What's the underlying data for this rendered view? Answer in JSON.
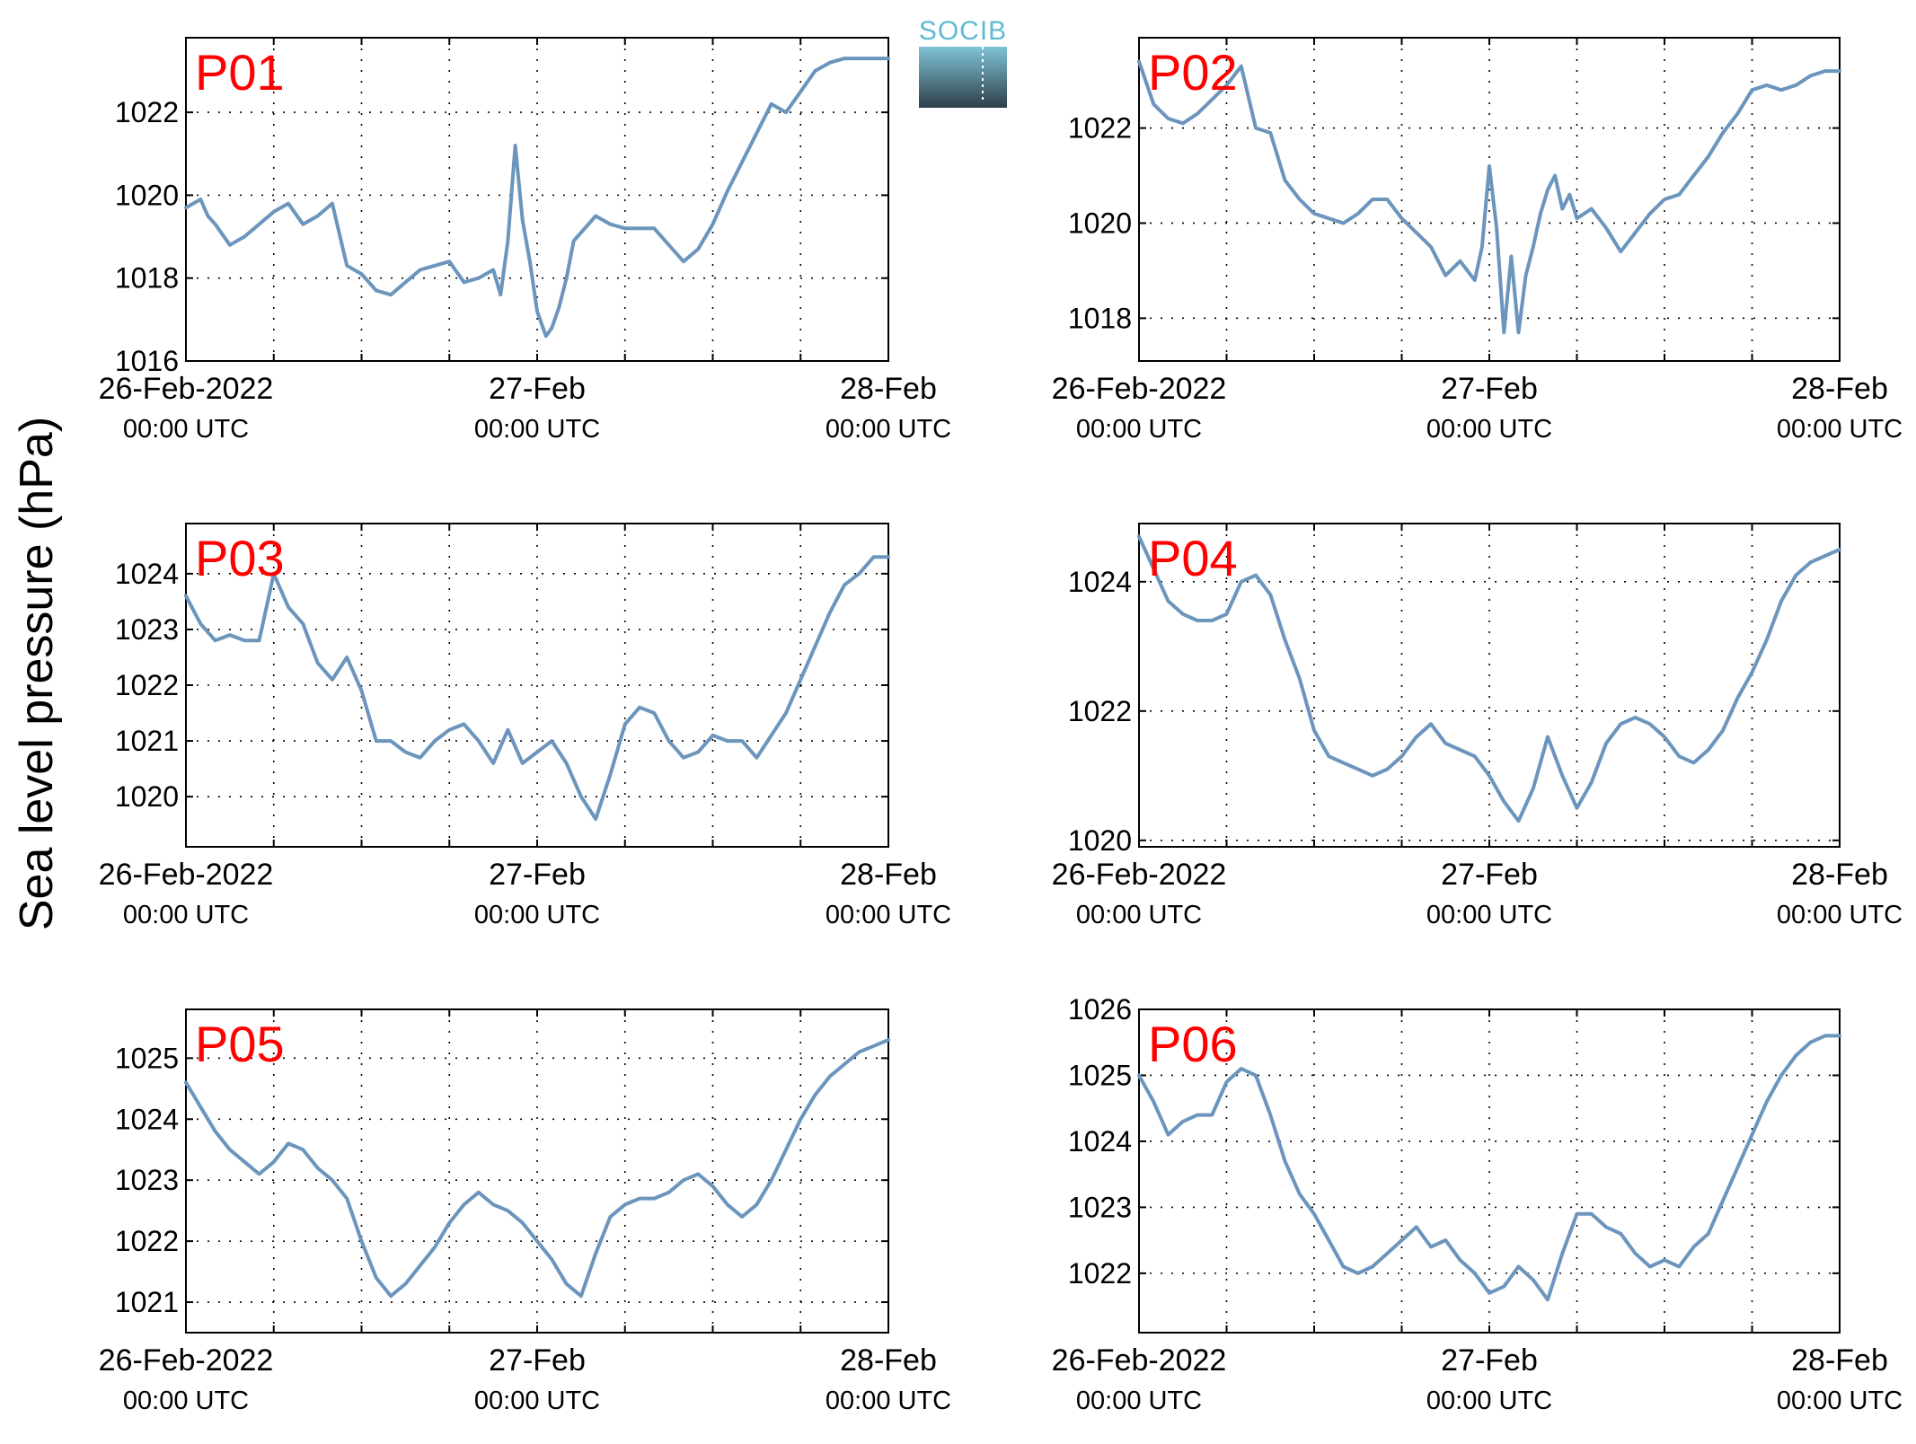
{
  "ylabel": "Sea level pressure (hPa)",
  "logo": {
    "text": "SOCIB",
    "text_color": "#5fb9d2",
    "gradient_top": "#7fc3d6",
    "gradient_bottom": "#2f3f48"
  },
  "colors": {
    "line": "#6b95bc",
    "panel_label": "#ff0000",
    "grid": "#000000"
  },
  "chart_data": [
    {
      "type": "line",
      "title": "P01",
      "x_ticks": [
        {
          "x": 0,
          "date": "26-Feb-2022",
          "time": "00:00 UTC"
        },
        {
          "x": 24,
          "date": "27-Feb",
          "time": "00:00 UTC"
        },
        {
          "x": 48,
          "date": "28-Feb",
          "time": "00:00 UTC"
        }
      ],
      "xlim": [
        0,
        48
      ],
      "ylim": [
        1016,
        1023.8
      ],
      "y_ticks": [
        1016,
        1018,
        1020,
        1022
      ],
      "grid": true,
      "x": [
        0,
        1,
        1.5,
        2,
        3,
        4,
        5,
        6,
        7,
        8,
        9,
        10,
        11,
        12,
        13,
        14,
        15,
        16,
        17,
        18,
        19,
        20,
        21,
        21.5,
        22,
        22.5,
        23,
        23.5,
        24,
        24.3,
        24.6,
        25,
        25.5,
        26,
        26.5,
        27,
        28,
        29,
        30,
        31,
        32,
        33,
        34,
        35,
        36,
        37,
        38,
        39,
        40,
        41,
        42,
        43,
        44,
        45,
        46,
        47,
        48
      ],
      "values": [
        1019.7,
        1019.9,
        1019.5,
        1019.3,
        1018.8,
        1019.0,
        1019.3,
        1019.6,
        1019.8,
        1019.3,
        1019.5,
        1019.8,
        1018.3,
        1018.1,
        1017.7,
        1017.6,
        1017.9,
        1018.2,
        1018.3,
        1018.4,
        1017.9,
        1018.0,
        1018.2,
        1017.6,
        1018.9,
        1021.2,
        1019.4,
        1018.4,
        1017.2,
        1016.9,
        1016.6,
        1016.8,
        1017.3,
        1018.0,
        1018.9,
        1019.1,
        1019.5,
        1019.3,
        1019.2,
        1019.2,
        1019.2,
        1018.8,
        1018.4,
        1018.7,
        1019.3,
        1020.1,
        1020.8,
        1021.5,
        1022.2,
        1022.0,
        1022.5,
        1023.0,
        1023.2,
        1023.3,
        1023.3,
        1023.3,
        1023.3
      ]
    },
    {
      "type": "line",
      "title": "P02",
      "x_ticks": [
        {
          "x": 0,
          "date": "26-Feb-2022",
          "time": "00:00 UTC"
        },
        {
          "x": 24,
          "date": "27-Feb",
          "time": "00:00 UTC"
        },
        {
          "x": 48,
          "date": "28-Feb",
          "time": "00:00 UTC"
        }
      ],
      "xlim": [
        0,
        48
      ],
      "ylim": [
        1017.1,
        1023.9
      ],
      "y_ticks": [
        1018,
        1020,
        1022
      ],
      "grid": true,
      "x": [
        0,
        1,
        2,
        3,
        4,
        5,
        6,
        7,
        8,
        9,
        10,
        11,
        12,
        13,
        14,
        15,
        16,
        17,
        18,
        19,
        20,
        21,
        22,
        23,
        23.5,
        24,
        24.5,
        25,
        25.5,
        26,
        26.5,
        27,
        27.5,
        28,
        28.5,
        29,
        29.5,
        30,
        31,
        32,
        33,
        34,
        35,
        36,
        37,
        38,
        39,
        40,
        41,
        42,
        43,
        44,
        45,
        46,
        47,
        48
      ],
      "values": [
        1023.4,
        1022.5,
        1022.2,
        1022.1,
        1022.3,
        1022.6,
        1022.9,
        1023.3,
        1022.0,
        1021.9,
        1020.9,
        1020.5,
        1020.2,
        1020.1,
        1020.0,
        1020.2,
        1020.5,
        1020.5,
        1020.1,
        1019.8,
        1019.5,
        1018.9,
        1019.2,
        1018.8,
        1019.5,
        1021.2,
        1019.9,
        1017.7,
        1019.3,
        1017.7,
        1018.9,
        1019.5,
        1020.2,
        1020.7,
        1021.0,
        1020.3,
        1020.6,
        1020.1,
        1020.3,
        1019.9,
        1019.4,
        1019.8,
        1020.2,
        1020.5,
        1020.6,
        1021.0,
        1021.4,
        1021.9,
        1022.3,
        1022.8,
        1022.9,
        1022.8,
        1022.9,
        1023.1,
        1023.2,
        1023.2
      ]
    },
    {
      "type": "line",
      "title": "P03",
      "x_ticks": [
        {
          "x": 0,
          "date": "26-Feb-2022",
          "time": "00:00 UTC"
        },
        {
          "x": 24,
          "date": "27-Feb",
          "time": "00:00 UTC"
        },
        {
          "x": 48,
          "date": "28-Feb",
          "time": "00:00 UTC"
        }
      ],
      "xlim": [
        0,
        48
      ],
      "ylim": [
        1019.1,
        1024.9
      ],
      "y_ticks": [
        1020,
        1021,
        1022,
        1023,
        1024
      ],
      "grid": true,
      "x": [
        0,
        1,
        2,
        3,
        4,
        5,
        6,
        7,
        8,
        9,
        10,
        11,
        12,
        13,
        14,
        15,
        16,
        17,
        18,
        19,
        20,
        21,
        22,
        23,
        24,
        25,
        26,
        27,
        28,
        29,
        30,
        31,
        32,
        33,
        34,
        35,
        36,
        37,
        38,
        39,
        40,
        41,
        42,
        43,
        44,
        45,
        46,
        47,
        48
      ],
      "values": [
        1023.6,
        1023.1,
        1022.8,
        1022.9,
        1022.8,
        1022.8,
        1024.0,
        1023.4,
        1023.1,
        1022.4,
        1022.1,
        1022.5,
        1021.9,
        1021.0,
        1021.0,
        1020.8,
        1020.7,
        1021.0,
        1021.2,
        1021.3,
        1021.0,
        1020.6,
        1021.2,
        1020.6,
        1020.8,
        1021.0,
        1020.6,
        1020.0,
        1019.6,
        1020.4,
        1021.3,
        1021.6,
        1021.5,
        1021.0,
        1020.7,
        1020.8,
        1021.1,
        1021.0,
        1021.0,
        1020.7,
        1021.1,
        1021.5,
        1022.1,
        1022.7,
        1023.3,
        1023.8,
        1024.0,
        1024.3,
        1024.3
      ]
    },
    {
      "type": "line",
      "title": "P04",
      "x_ticks": [
        {
          "x": 0,
          "date": "26-Feb-2022",
          "time": "00:00 UTC"
        },
        {
          "x": 24,
          "date": "27-Feb",
          "time": "00:00 UTC"
        },
        {
          "x": 48,
          "date": "28-Feb",
          "time": "00:00 UTC"
        }
      ],
      "xlim": [
        0,
        48
      ],
      "ylim": [
        1019.9,
        1024.9
      ],
      "y_ticks": [
        1020,
        1022,
        1024
      ],
      "grid": true,
      "x": [
        0,
        1,
        2,
        3,
        4,
        5,
        6,
        7,
        8,
        9,
        10,
        11,
        12,
        13,
        14,
        15,
        16,
        17,
        18,
        19,
        20,
        21,
        22,
        23,
        24,
        25,
        26,
        27,
        28,
        29,
        30,
        31,
        32,
        33,
        34,
        35,
        36,
        37,
        38,
        39,
        40,
        41,
        42,
        43,
        44,
        45,
        46,
        47,
        48
      ],
      "values": [
        1024.7,
        1024.2,
        1023.7,
        1023.5,
        1023.4,
        1023.4,
        1023.5,
        1024.0,
        1024.1,
        1023.8,
        1023.1,
        1022.5,
        1021.7,
        1021.3,
        1021.2,
        1021.1,
        1021.0,
        1021.1,
        1021.3,
        1021.6,
        1021.8,
        1021.5,
        1021.4,
        1021.3,
        1021.0,
        1020.6,
        1020.3,
        1020.8,
        1021.6,
        1021.0,
        1020.5,
        1020.9,
        1021.5,
        1021.8,
        1021.9,
        1021.8,
        1021.6,
        1021.3,
        1021.2,
        1021.4,
        1021.7,
        1022.2,
        1022.6,
        1023.1,
        1023.7,
        1024.1,
        1024.3,
        1024.4,
        1024.5
      ]
    },
    {
      "type": "line",
      "title": "P05",
      "x_ticks": [
        {
          "x": 0,
          "date": "26-Feb-2022",
          "time": "00:00 UTC"
        },
        {
          "x": 24,
          "date": "27-Feb",
          "time": "00:00 UTC"
        },
        {
          "x": 48,
          "date": "28-Feb",
          "time": "00:00 UTC"
        }
      ],
      "xlim": [
        0,
        48
      ],
      "ylim": [
        1020.5,
        1025.8
      ],
      "y_ticks": [
        1021,
        1022,
        1023,
        1024,
        1025
      ],
      "grid": true,
      "x": [
        0,
        1,
        2,
        3,
        4,
        5,
        6,
        7,
        8,
        9,
        10,
        11,
        12,
        13,
        14,
        15,
        16,
        17,
        18,
        19,
        20,
        21,
        22,
        23,
        24,
        25,
        26,
        27,
        28,
        29,
        30,
        31,
        32,
        33,
        34,
        35,
        36,
        37,
        38,
        39,
        40,
        41,
        42,
        43,
        44,
        45,
        46,
        47,
        48
      ],
      "values": [
        1024.6,
        1024.2,
        1023.8,
        1023.5,
        1023.3,
        1023.1,
        1023.3,
        1023.6,
        1023.5,
        1023.2,
        1023.0,
        1022.7,
        1022.0,
        1021.4,
        1021.1,
        1021.3,
        1021.6,
        1021.9,
        1022.3,
        1022.6,
        1022.8,
        1022.6,
        1022.5,
        1022.3,
        1022.0,
        1021.7,
        1021.3,
        1021.1,
        1021.8,
        1022.4,
        1022.6,
        1022.7,
        1022.7,
        1022.8,
        1023.0,
        1023.1,
        1022.9,
        1022.6,
        1022.4,
        1022.6,
        1023.0,
        1023.5,
        1024.0,
        1024.4,
        1024.7,
        1024.9,
        1025.1,
        1025.2,
        1025.3
      ]
    },
    {
      "type": "line",
      "title": "P06",
      "x_ticks": [
        {
          "x": 0,
          "date": "26-Feb-2022",
          "time": "00:00 UTC"
        },
        {
          "x": 24,
          "date": "27-Feb",
          "time": "00:00 UTC"
        },
        {
          "x": 48,
          "date": "28-Feb",
          "time": "00:00 UTC"
        }
      ],
      "xlim": [
        0,
        48
      ],
      "ylim": [
        1021.1,
        1026.0
      ],
      "y_ticks": [
        1022,
        1023,
        1024,
        1025,
        1026
      ],
      "grid": true,
      "x": [
        0,
        1,
        2,
        3,
        4,
        5,
        6,
        7,
        8,
        9,
        10,
        11,
        12,
        13,
        14,
        15,
        16,
        17,
        18,
        19,
        20,
        21,
        22,
        23,
        24,
        25,
        26,
        27,
        28,
        29,
        30,
        31,
        32,
        33,
        34,
        35,
        36,
        37,
        38,
        39,
        40,
        41,
        42,
        43,
        44,
        45,
        46,
        47,
        48
      ],
      "values": [
        1025.0,
        1024.6,
        1024.1,
        1024.3,
        1024.4,
        1024.4,
        1024.9,
        1025.1,
        1025.0,
        1024.4,
        1023.7,
        1023.2,
        1022.9,
        1022.5,
        1022.1,
        1022.0,
        1022.1,
        1022.3,
        1022.5,
        1022.7,
        1022.4,
        1022.5,
        1022.2,
        1022.0,
        1021.7,
        1021.8,
        1022.1,
        1021.9,
        1021.6,
        1022.3,
        1022.9,
        1022.9,
        1022.7,
        1022.6,
        1022.3,
        1022.1,
        1022.2,
        1022.1,
        1022.4,
        1022.6,
        1023.1,
        1023.6,
        1024.1,
        1024.6,
        1025.0,
        1025.3,
        1025.5,
        1025.6,
        1025.6
      ]
    }
  ]
}
